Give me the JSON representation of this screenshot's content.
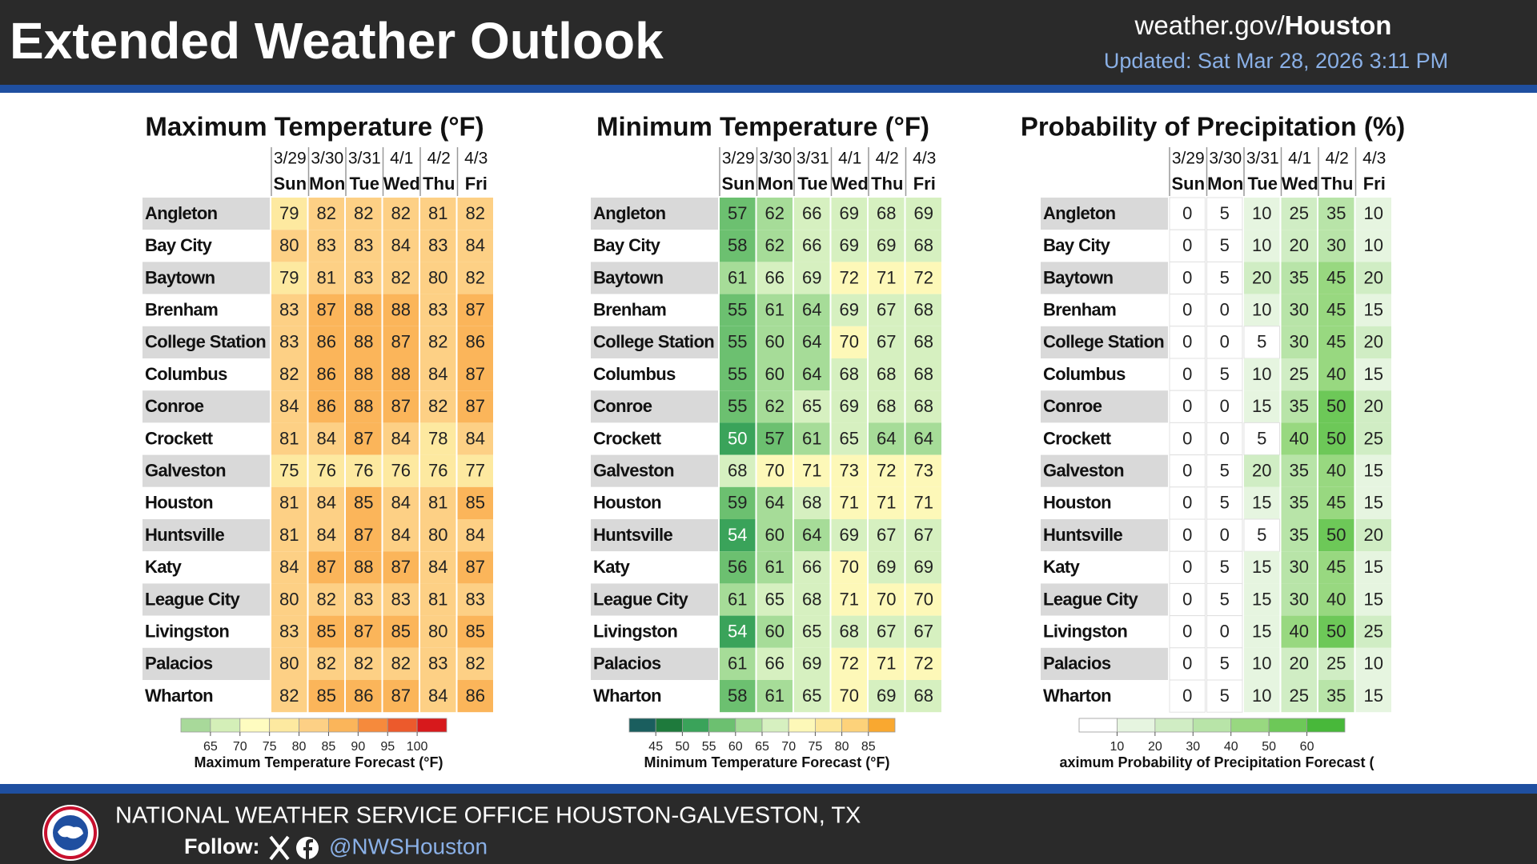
{
  "header": {
    "title": "Extended Weather Outlook",
    "site": "weather.gov/",
    "office": "Houston",
    "updated": "Updated: Sat Mar 28, 2026 3:11 PM"
  },
  "dates": [
    "3/29",
    "3/30",
    "3/31",
    "4/1",
    "4/2",
    "4/3"
  ],
  "days": [
    "Sun",
    "Mon",
    "Tue",
    "Wed",
    "Thu",
    "Fri"
  ],
  "cities": [
    "Angleton",
    "Bay City",
    "Baytown",
    "Brenham",
    "College Station",
    "Columbus",
    "Conroe",
    "Crockett",
    "Galveston",
    "Houston",
    "Huntsville",
    "Katy",
    "League City",
    "Livingston",
    "Palacios",
    "Wharton"
  ],
  "tables": [
    {
      "title": "Maximum Temperature (°F)",
      "values": [
        [
          79,
          82,
          82,
          82,
          81,
          82
        ],
        [
          80,
          83,
          83,
          84,
          83,
          84
        ],
        [
          79,
          81,
          83,
          82,
          80,
          82
        ],
        [
          83,
          87,
          88,
          88,
          83,
          87
        ],
        [
          83,
          86,
          88,
          87,
          82,
          86
        ],
        [
          82,
          86,
          88,
          88,
          84,
          87
        ],
        [
          84,
          86,
          88,
          87,
          82,
          87
        ],
        [
          81,
          84,
          87,
          84,
          78,
          84
        ],
        [
          75,
          76,
          76,
          76,
          76,
          77
        ],
        [
          81,
          84,
          85,
          84,
          81,
          85
        ],
        [
          81,
          84,
          87,
          84,
          80,
          84
        ],
        [
          84,
          87,
          88,
          87,
          84,
          87
        ],
        [
          80,
          82,
          83,
          83,
          81,
          83
        ],
        [
          83,
          85,
          87,
          85,
          80,
          85
        ],
        [
          80,
          82,
          82,
          82,
          83,
          82
        ],
        [
          82,
          85,
          86,
          87,
          84,
          86
        ]
      ],
      "legend": {
        "label": "Maximum Temperature Forecast (°F)",
        "lim": [
          60,
          105
        ],
        "ticks": [
          65,
          70,
          75,
          80,
          85,
          90,
          95,
          100
        ],
        "colors": [
          "#a8d99a",
          "#d4efb8",
          "#fefcc0",
          "#fde9a0",
          "#fdd085",
          "#fbb55a",
          "#f68a3c",
          "#ec5a2c",
          "#d7191c"
        ]
      }
    },
    {
      "title": "Minimum Temperature (°F)",
      "values": [
        [
          57,
          62,
          66,
          69,
          68,
          69
        ],
        [
          58,
          62,
          66,
          69,
          69,
          68
        ],
        [
          61,
          66,
          69,
          72,
          71,
          72
        ],
        [
          55,
          61,
          64,
          69,
          67,
          68
        ],
        [
          55,
          60,
          64,
          70,
          67,
          68
        ],
        [
          55,
          60,
          64,
          68,
          68,
          68
        ],
        [
          55,
          62,
          65,
          69,
          68,
          68
        ],
        [
          50,
          57,
          61,
          65,
          64,
          64
        ],
        [
          68,
          70,
          71,
          73,
          72,
          73
        ],
        [
          59,
          64,
          68,
          71,
          71,
          71
        ],
        [
          54,
          60,
          64,
          69,
          67,
          67
        ],
        [
          56,
          61,
          66,
          70,
          69,
          69
        ],
        [
          61,
          65,
          68,
          71,
          70,
          70
        ],
        [
          54,
          60,
          65,
          68,
          67,
          67
        ],
        [
          61,
          66,
          69,
          72,
          71,
          72
        ],
        [
          58,
          61,
          65,
          70,
          69,
          68
        ]
      ],
      "legend": {
        "label": "Minimum Temperature Forecast (°F)",
        "lim": [
          40,
          90
        ],
        "ticks": [
          45,
          50,
          55,
          60,
          65,
          70,
          75,
          80,
          85
        ],
        "colors": [
          "#1a5e5e",
          "#1e7a3c",
          "#3aa35a",
          "#6cc070",
          "#a6dc98",
          "#d6f0c0",
          "#fdf8b8",
          "#fde79a",
          "#fdd27a",
          "#f9a830"
        ]
      }
    },
    {
      "title": "Probability of Precipitation (%)",
      "values": [
        [
          0,
          5,
          10,
          25,
          35,
          10
        ],
        [
          0,
          5,
          10,
          20,
          30,
          10
        ],
        [
          0,
          5,
          20,
          35,
          45,
          20
        ],
        [
          0,
          0,
          10,
          30,
          45,
          15
        ],
        [
          0,
          0,
          5,
          30,
          45,
          20
        ],
        [
          0,
          5,
          10,
          25,
          40,
          15
        ],
        [
          0,
          0,
          15,
          35,
          50,
          20
        ],
        [
          0,
          0,
          5,
          40,
          50,
          25
        ],
        [
          0,
          5,
          20,
          35,
          40,
          15
        ],
        [
          0,
          5,
          15,
          35,
          45,
          15
        ],
        [
          0,
          0,
          5,
          35,
          50,
          20
        ],
        [
          0,
          5,
          15,
          30,
          45,
          15
        ],
        [
          0,
          5,
          15,
          30,
          40,
          15
        ],
        [
          0,
          0,
          15,
          40,
          50,
          25
        ],
        [
          0,
          5,
          10,
          20,
          25,
          10
        ],
        [
          0,
          5,
          10,
          25,
          35,
          15
        ]
      ],
      "legend": {
        "label": "aximum Probability of Precipitation Forecast (",
        "lim": [
          0,
          70
        ],
        "ticks": [
          10,
          20,
          30,
          40,
          50,
          60
        ],
        "colors": [
          "#ffffff",
          "#e6f5e0",
          "#d0edc4",
          "#b8e4a8",
          "#98d880",
          "#6dc858",
          "#48b83a"
        ]
      }
    }
  ],
  "footer": {
    "office": "NATIONAL WEATHER SERVICE OFFICE HOUSTON-GALVESTON, TX",
    "follow": "Follow:",
    "handle": "@NWSHouston"
  }
}
